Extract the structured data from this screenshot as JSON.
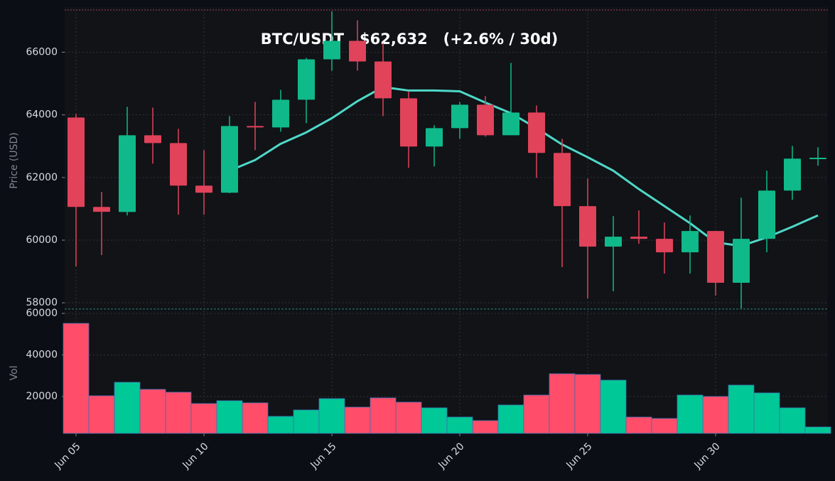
{
  "chart_data": {
    "type": "candlestick",
    "title": "BTC/USDT   $62,632   (+2.6% / 30d)",
    "ylabel": "Price (USD)",
    "categories": [
      "Jun 05",
      null,
      null,
      null,
      null,
      "Jun 10",
      null,
      null,
      null,
      null,
      "Jun 15",
      null,
      null,
      null,
      null,
      "Jun 20",
      null,
      null,
      null,
      null,
      "Jun 25",
      null,
      null,
      null,
      null,
      "Jun 30",
      null,
      null,
      null,
      null
    ],
    "open": [
      63916,
      61060,
      60900,
      63350,
      63100,
      61740,
      61515,
      63644,
      63600,
      64482,
      65773,
      66362,
      65706,
      64528,
      62988,
      63577,
      64324,
      63350,
      64075,
      62784,
      61085,
      59794,
      60111,
      60043,
      59613,
      60292,
      58639,
      60043,
      61583,
      62603
    ],
    "high": [
      64030,
      61538,
      64256,
      64233,
      63554,
      62874,
      63960,
      64414,
      64800,
      65819,
      67300,
      67019,
      66294,
      64754,
      63667,
      64414,
      64600,
      65660,
      64300,
      63237,
      61968,
      60768,
      60950,
      60564,
      60790,
      60292,
      61357,
      62217,
      63010,
      62965
    ],
    "low": [
      59160,
      59522,
      60790,
      62444,
      60813,
      60813,
      61500,
      62874,
      63463,
      63735,
      65411,
      65411,
      63961,
      62308,
      62353,
      63237,
      63305,
      63350,
      61990,
      59137,
      58140,
      58367,
      59885,
      58933,
      58933,
      58231,
      57820,
      59613,
      61289,
      62376
    ],
    "close": [
      61062,
      60904,
      63350,
      63100,
      61740,
      61515,
      63644,
      63600,
      64482,
      65773,
      66362,
      65706,
      64528,
      62988,
      63577,
      64324,
      63350,
      64075,
      62784,
      61085,
      59794,
      60111,
      60043,
      59613,
      60292,
      58639,
      60043,
      61583,
      62603,
      62632
    ],
    "up_color": "#10b98a",
    "down_color": "#e0435a",
    "ma": {
      "color": "#4fd8c8",
      "values": [
        null,
        null,
        null,
        null,
        null,
        null,
        62218,
        62557,
        63078,
        63440,
        63894,
        64437,
        64890,
        64777,
        64777,
        64754,
        64392,
        64052,
        63577,
        63055,
        62648,
        62218,
        61630,
        61085,
        60542,
        59930,
        59817,
        60088,
        60428,
        60790
      ]
    },
    "ylim": [
      57800,
      67350
    ],
    "yticks": [
      58000,
      60000,
      62000,
      64000,
      66000
    ],
    "grid": true,
    "volume": {
      "ylabel": "Vol",
      "values": [
        55213,
        20340,
        26840,
        23420,
        22050,
        16580,
        17950,
        16920,
        10420,
        13500,
        18970,
        14870,
        19310,
        17260,
        14530,
        10080,
        8370,
        15890,
        20680,
        30940,
        30600,
        27860,
        10080,
        9400,
        20680,
        20000,
        25470,
        21710,
        14530,
        5300
      ],
      "up_color": "#00c896",
      "down_color": "#ff4d6a",
      "ylim": [
        2200,
        61400
      ],
      "yticks": [
        20000,
        40000,
        60000
      ]
    }
  }
}
